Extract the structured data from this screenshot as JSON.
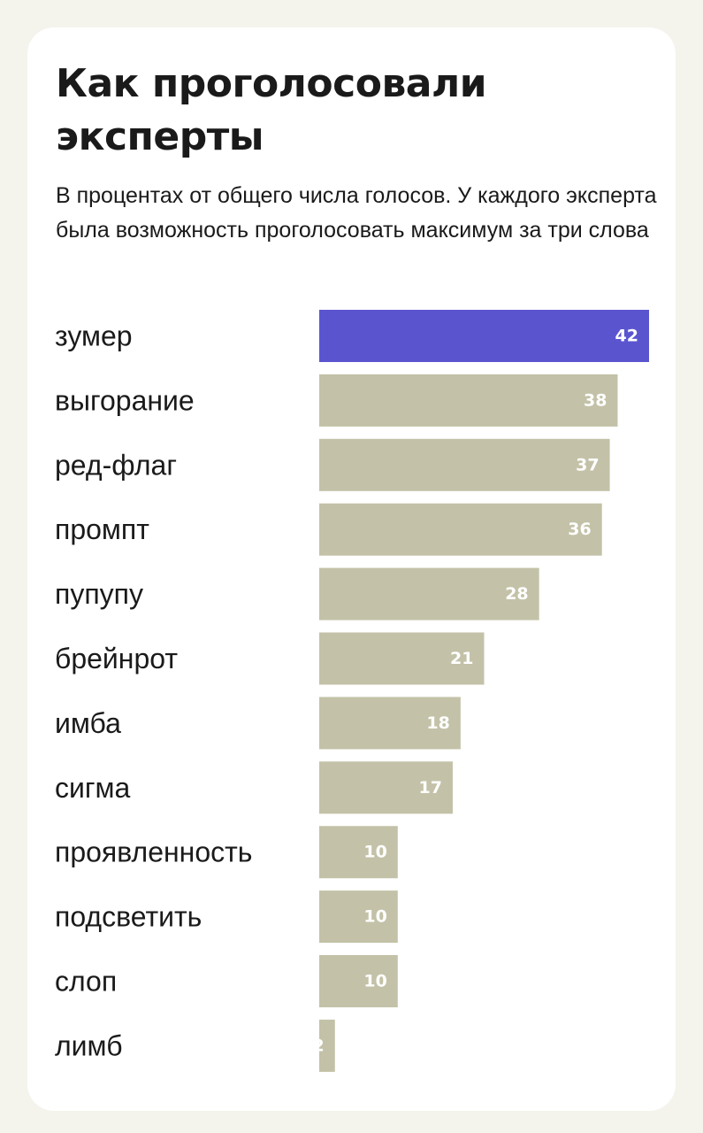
{
  "header": {
    "title": "Как проголосовали эксперты",
    "subtitle": "В процентах от общего числа голосов. У каждого эксперта была возможность проголосовать максимум за три слова"
  },
  "colors": {
    "highlight": "#5a55cf",
    "bar": "#c3c2a8",
    "value_text": "#ffffff",
    "background": "#f4f3ec",
    "card": "#ffffff"
  },
  "chart_data": {
    "type": "bar",
    "orientation": "horizontal",
    "title": "Как проголосовали эксперты",
    "subtitle": "В процентах от общего числа голосов. У каждого эксперта была возможность проголосовать максимум за три слова",
    "categories": [
      "зумер",
      "выгорание",
      "ред-флаг",
      "промпт",
      "пупупу",
      "брейнрот",
      "имба",
      "сигма",
      "проявленность",
      "подсветить",
      "слоп",
      "лимб"
    ],
    "values": [
      42,
      38,
      37,
      36,
      28,
      21,
      18,
      17,
      10,
      10,
      10,
      2
    ],
    "highlighted": [
      "зумер"
    ],
    "xlim": [
      0,
      42
    ],
    "grid": false,
    "legend": "none",
    "xlabel": "",
    "ylabel": ""
  }
}
